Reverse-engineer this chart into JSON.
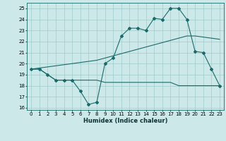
{
  "title": "",
  "xlabel": "Humidex (Indice chaleur)",
  "ylim": [
    15.8,
    25.5
  ],
  "xlim": [
    -0.5,
    23.5
  ],
  "yticks": [
    16,
    17,
    18,
    19,
    20,
    21,
    22,
    23,
    24,
    25
  ],
  "xticks": [
    0,
    1,
    2,
    3,
    4,
    5,
    6,
    7,
    8,
    9,
    10,
    11,
    12,
    13,
    14,
    15,
    16,
    17,
    18,
    19,
    20,
    21,
    22,
    23
  ],
  "bg_color": "#cde8e8",
  "grid_color": "#a0cccc",
  "line_color": "#1a6b6b",
  "line1_x": [
    0,
    1,
    2,
    3,
    4,
    5,
    6,
    7,
    8,
    9,
    10,
    11,
    12,
    13,
    14,
    15,
    16,
    17,
    18,
    19,
    20,
    21,
    22,
    23
  ],
  "line1_y": [
    19.5,
    19.5,
    19.0,
    18.5,
    18.5,
    18.5,
    17.5,
    16.3,
    16.5,
    20.0,
    20.5,
    22.5,
    23.2,
    23.2,
    23.0,
    24.1,
    24.0,
    25.0,
    25.0,
    24.0,
    21.1,
    21.0,
    19.5,
    18.0
  ],
  "line2_x": [
    0,
    1,
    2,
    3,
    4,
    5,
    6,
    7,
    8,
    9,
    10,
    11,
    12,
    13,
    14,
    15,
    16,
    17,
    18,
    19,
    20,
    21,
    22,
    23
  ],
  "line2_y": [
    19.5,
    19.6,
    19.7,
    19.8,
    19.9,
    20.0,
    20.1,
    20.2,
    20.3,
    20.5,
    20.7,
    20.9,
    21.1,
    21.3,
    21.5,
    21.7,
    21.9,
    22.1,
    22.3,
    22.5,
    22.5,
    22.4,
    22.3,
    22.2
  ],
  "line3_x": [
    0,
    1,
    2,
    3,
    4,
    5,
    6,
    7,
    8,
    9,
    10,
    11,
    12,
    13,
    14,
    15,
    16,
    17,
    18,
    19,
    20,
    21,
    22,
    23
  ],
  "line3_y": [
    19.5,
    19.5,
    19.0,
    18.5,
    18.5,
    18.5,
    18.5,
    18.5,
    18.5,
    18.3,
    18.3,
    18.3,
    18.3,
    18.3,
    18.3,
    18.3,
    18.3,
    18.3,
    18.0,
    18.0,
    18.0,
    18.0,
    18.0,
    18.0
  ],
  "tick_fontsize": 5,
  "xlabel_fontsize": 6,
  "marker_size": 2.0
}
